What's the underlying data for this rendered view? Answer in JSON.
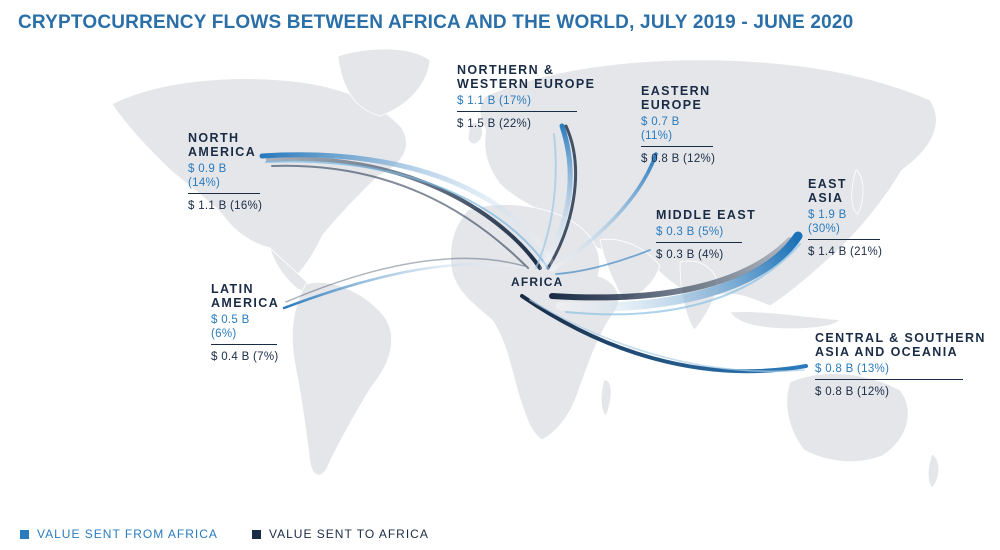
{
  "title": "CRYPTOCURRENCY FLOWS BETWEEN AFRICA AND THE WORLD, JULY 2019 - JUNE 2020",
  "colors": {
    "from_africa": "#2a7bbd",
    "to_africa": "#1a2c45",
    "land": "#e4e6ea",
    "title": "#2a6fa8"
  },
  "hub": {
    "label": "AFRICA"
  },
  "regions": {
    "north_america": {
      "name_1": "NORTH",
      "name_2": "AMERICA",
      "from_africa": "$ 0.9 B (14%)",
      "to_africa": "$ 1.1 B (16%)"
    },
    "northern_western_europe": {
      "name_1": "NORTHERN &",
      "name_2": "WESTERN EUROPE",
      "from_africa": "$ 1.1 B (17%)",
      "to_africa": "$ 1.5 B (22%)"
    },
    "eastern_europe": {
      "name_1": "EASTERN",
      "name_2": "EUROPE",
      "from_africa": "$ 0.7 B (11%)",
      "to_africa": "$ 0.8 B (12%)"
    },
    "middle_east": {
      "name_1": "MIDDLE EAST",
      "from_africa": "$ 0.3 B (5%)",
      "to_africa": "$ 0.3 B (4%)"
    },
    "east_asia": {
      "name_1": "EAST",
      "name_2": "ASIA",
      "from_africa": "$ 1.9 B (30%)",
      "to_africa": "$ 1.4 B (21%)"
    },
    "latin_america": {
      "name_1": "LATIN",
      "name_2": "AMERICA",
      "from_africa": "$ 0.5 B (6%)",
      "to_africa": "$ 0.4 B (7%)"
    },
    "central_southern_asia_oceania": {
      "name_1": "CENTRAL & SOUTHERN",
      "name_2": "ASIA AND OCEANIA",
      "from_africa": "$ 0.8 B (13%)",
      "to_africa": "$ 0.8 B (12%)"
    }
  },
  "legend": {
    "from_africa": "VALUE SENT FROM AFRICA",
    "to_africa": "VALUE SENT TO AFRICA"
  }
}
